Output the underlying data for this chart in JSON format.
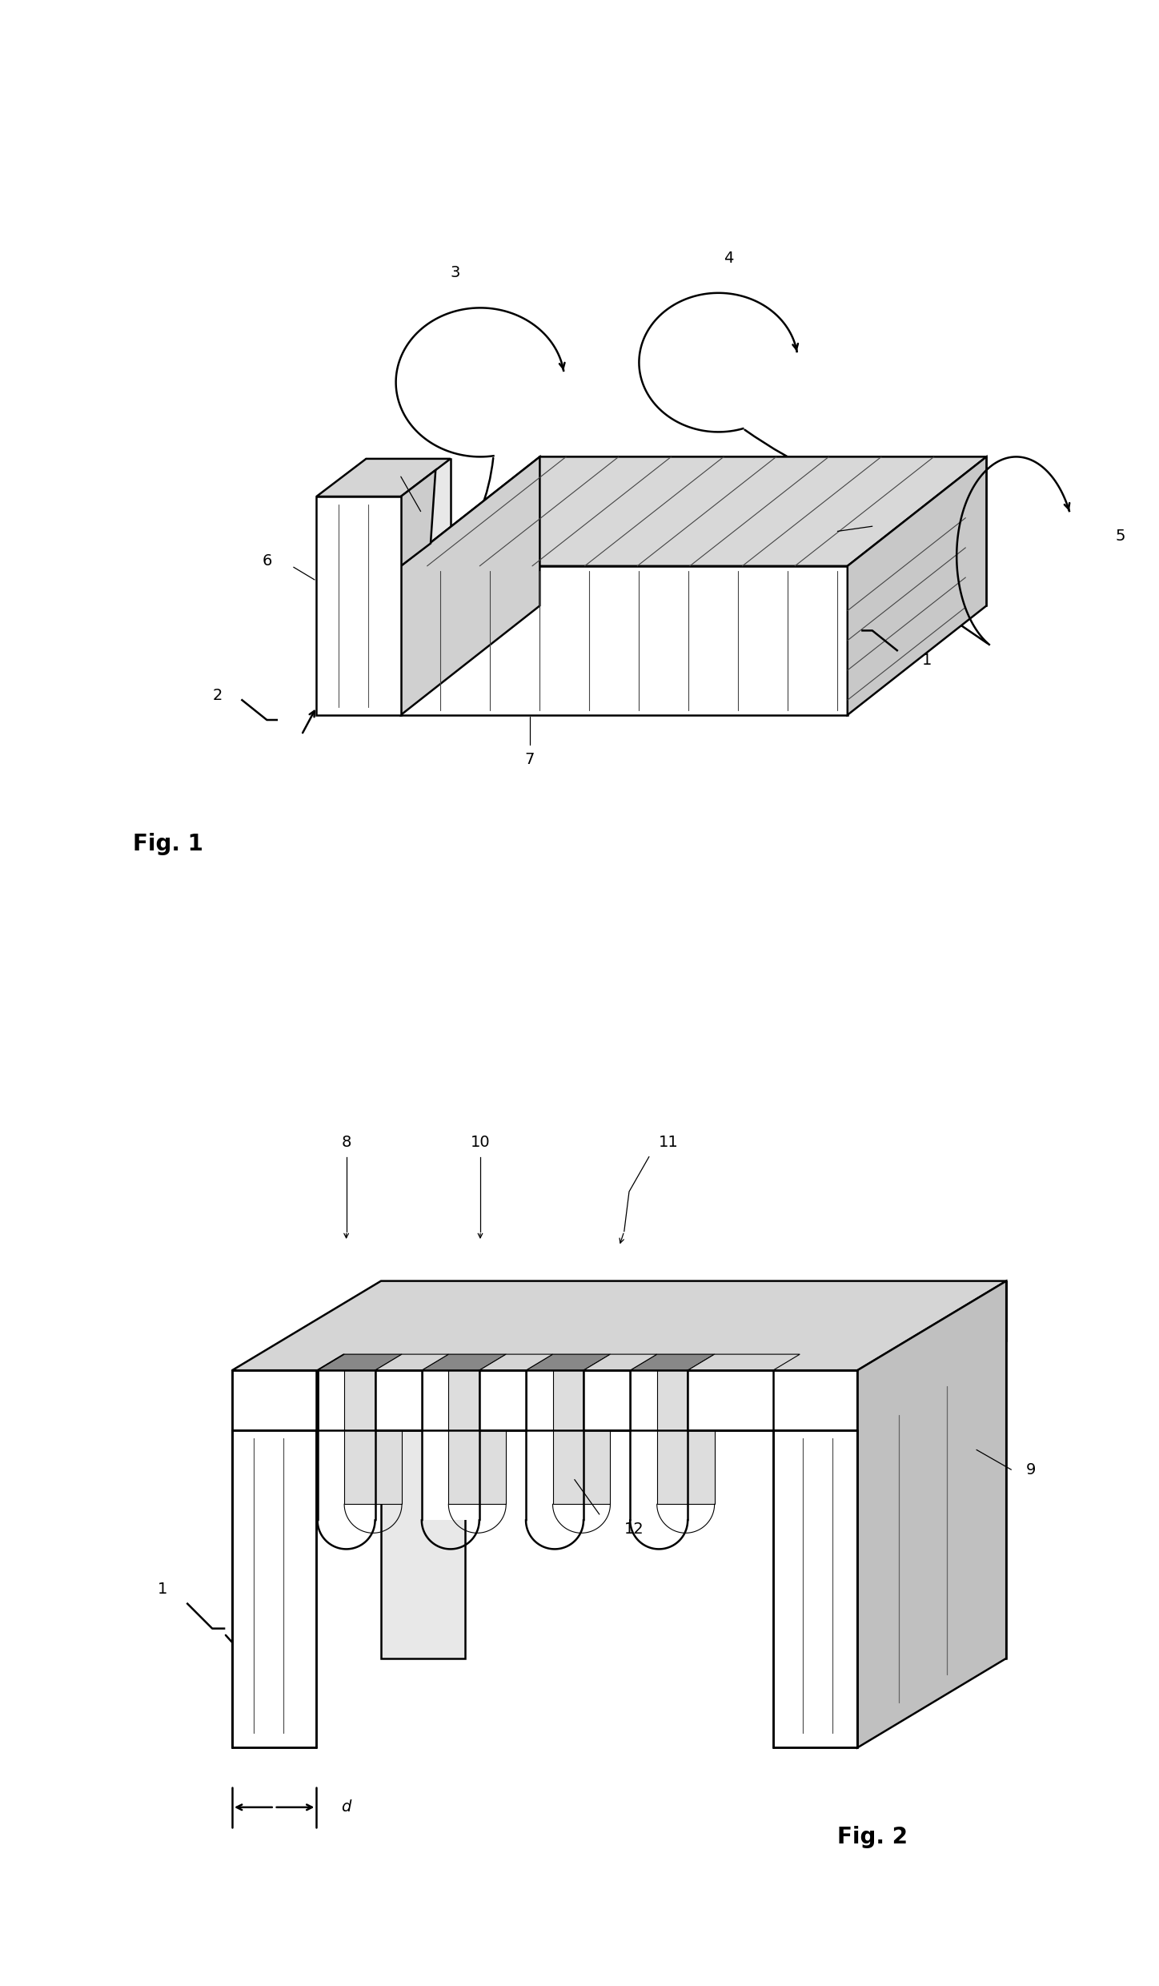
{
  "bg_color": "#ffffff",
  "line_color": "#000000",
  "fig_width": 14.48,
  "fig_height": 24.8,
  "fig1_label": "Fig. 1",
  "fig2_label": "Fig. 2"
}
